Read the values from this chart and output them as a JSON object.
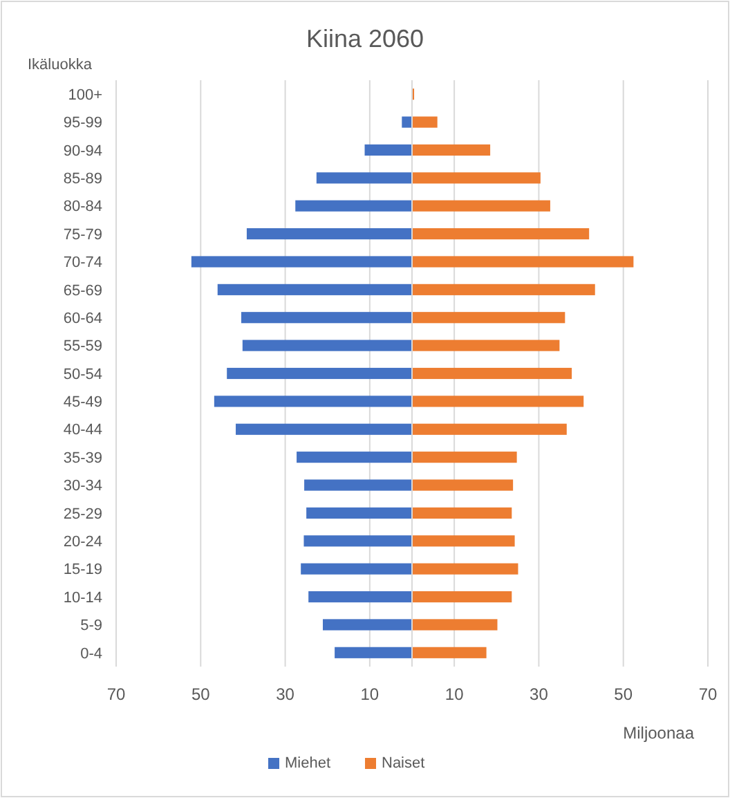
{
  "chart_data": {
    "type": "bar",
    "orientation": "horizontal",
    "title": "Kiina 2060",
    "ylabel": "Ikäluokka",
    "xlabel": "Miljoonaa",
    "categories": [
      "100+",
      "95-99",
      "90-94",
      "85-89",
      "80-84",
      "75-79",
      "70-74",
      "65-69",
      "60-64",
      "55-59",
      "50-54",
      "45-49",
      "40-44",
      "35-39",
      "30-34",
      "25-29",
      "20-24",
      "15-19",
      "10-14",
      "5-9",
      "0-4"
    ],
    "series": [
      {
        "name": "Miehet",
        "color": "#4472c4",
        "values": [
          0,
          -2.4,
          -11.2,
          -22.6,
          -27.6,
          -39.1,
          -52.2,
          -46.0,
          -40.4,
          -40.1,
          -43.8,
          -46.8,
          -41.7,
          -27.3,
          -25.5,
          -25.0,
          -25.6,
          -26.3,
          -24.5,
          -21.1,
          -18.3
        ]
      },
      {
        "name": "Naiset",
        "color": "#ed7d31",
        "values": [
          0.5,
          6.0,
          18.5,
          30.4,
          32.7,
          41.9,
          52.4,
          43.3,
          36.2,
          34.9,
          37.8,
          40.6,
          36.6,
          24.8,
          23.9,
          23.6,
          24.3,
          25.1,
          23.6,
          20.2,
          17.6
        ]
      }
    ],
    "xlim": [
      -70,
      70
    ],
    "xticks": [
      {
        "value": -70,
        "label": "70"
      },
      {
        "value": -50,
        "label": "50"
      },
      {
        "value": -30,
        "label": "30"
      },
      {
        "value": -10,
        "label": "10"
      },
      10,
      30,
      50,
      70
    ],
    "grid": "x",
    "legend": "bottom",
    "stacked": true
  }
}
